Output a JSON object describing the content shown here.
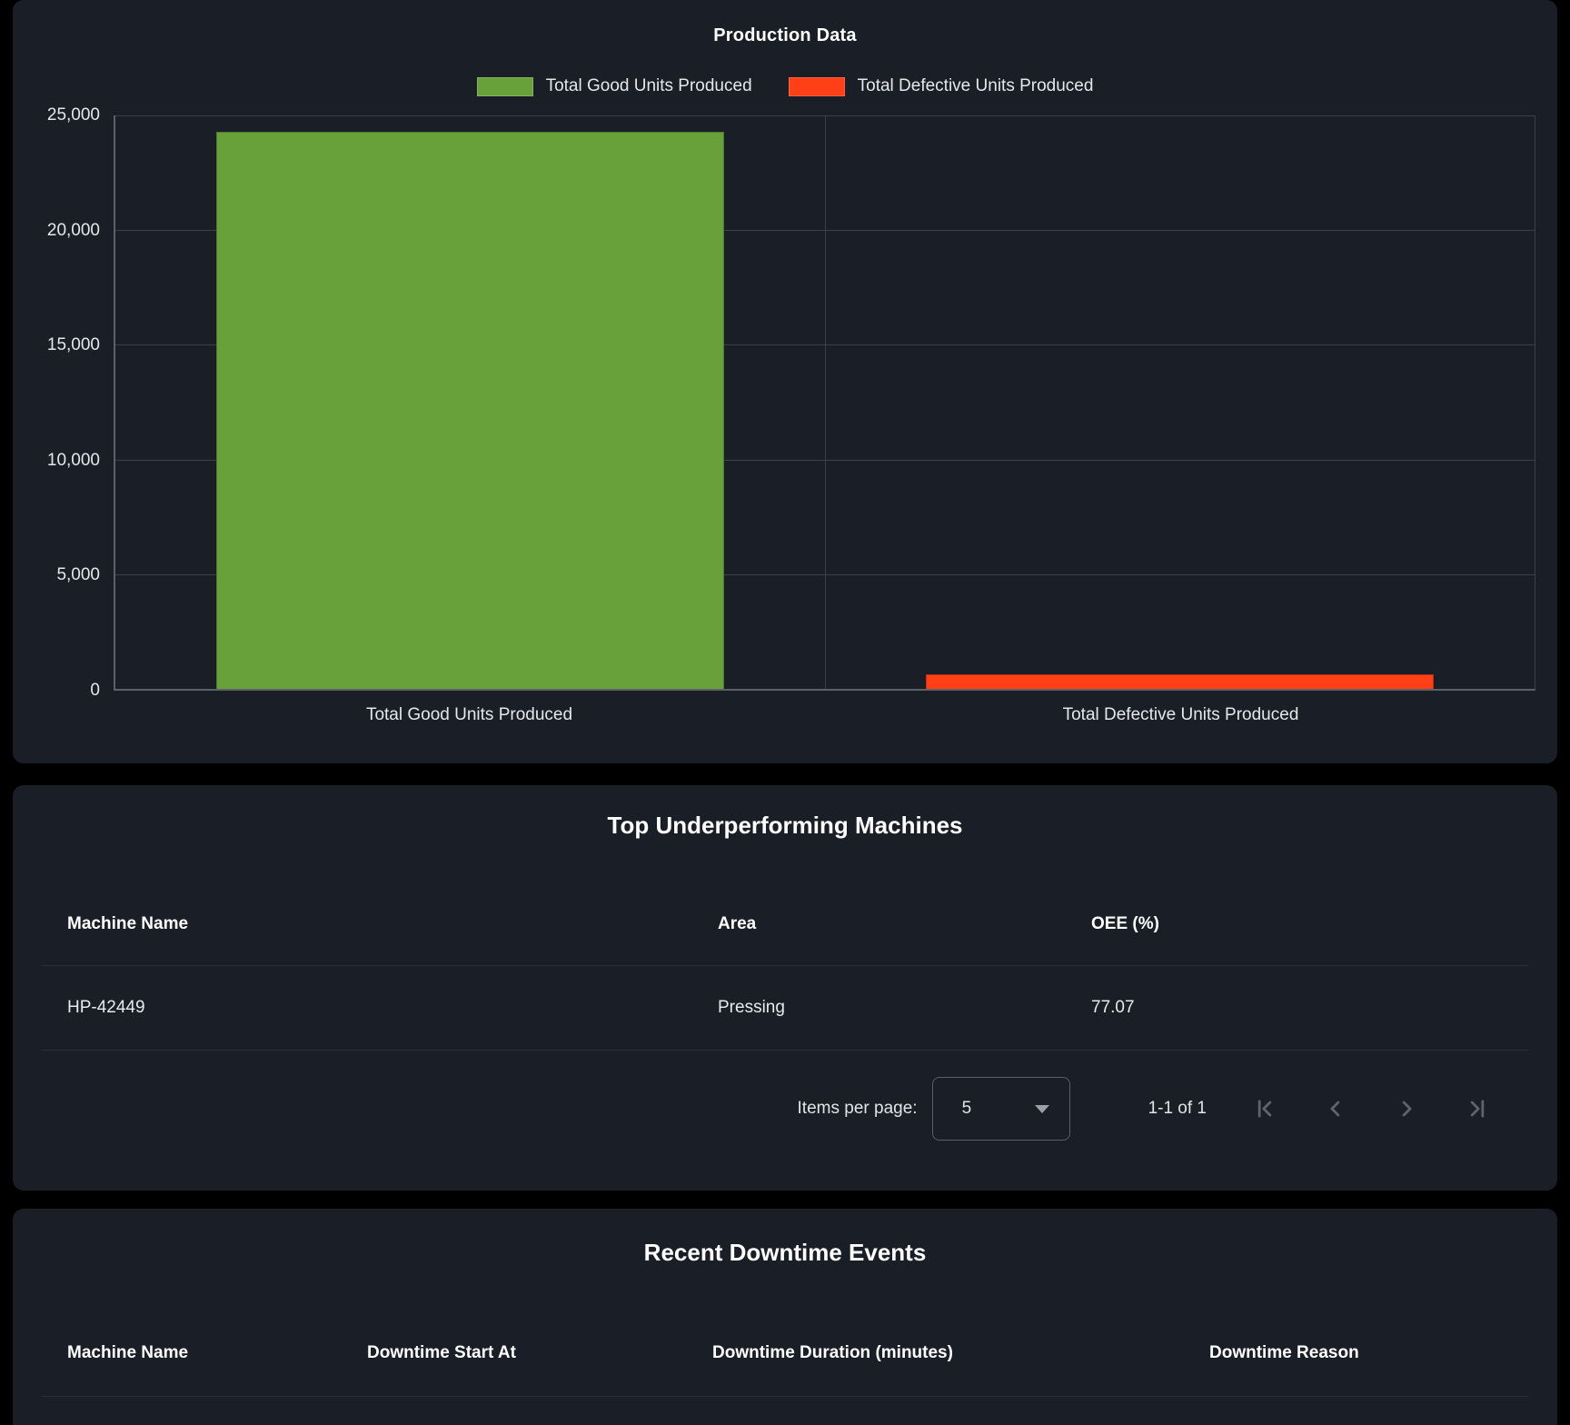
{
  "chart_data": {
    "type": "bar",
    "title": "Production Data",
    "categories": [
      "Total Good Units Produced",
      "Total Defective Units Produced"
    ],
    "values": [
      24300,
      620
    ],
    "colors": [
      "#68a03a",
      "#ff4017"
    ],
    "legend": [
      "Total Good Units Produced",
      "Total Defective Units Produced"
    ],
    "legend_position": "top",
    "xlabel": "",
    "ylabel": "",
    "ylim": [
      0,
      25000
    ],
    "grid": true,
    "y_ticks": [
      "25,000",
      "20,000",
      "15,000",
      "10,000",
      "5,000",
      "0"
    ]
  },
  "underperforming": {
    "title": "Top Underperforming Machines",
    "columns": [
      "Machine Name",
      "Area",
      "OEE (%)"
    ],
    "rows": [
      {
        "machine": "HP-42449",
        "area": "Pressing",
        "oee": "77.07"
      }
    ]
  },
  "paginator": {
    "items_per_page_label": "Items per page:",
    "page_size": "5",
    "range": "1-1 of 1"
  },
  "downtime": {
    "title": "Recent Downtime Events",
    "columns": [
      "Machine Name",
      "Downtime Start At",
      "Downtime Duration (minutes)",
      "Downtime Reason"
    ]
  }
}
